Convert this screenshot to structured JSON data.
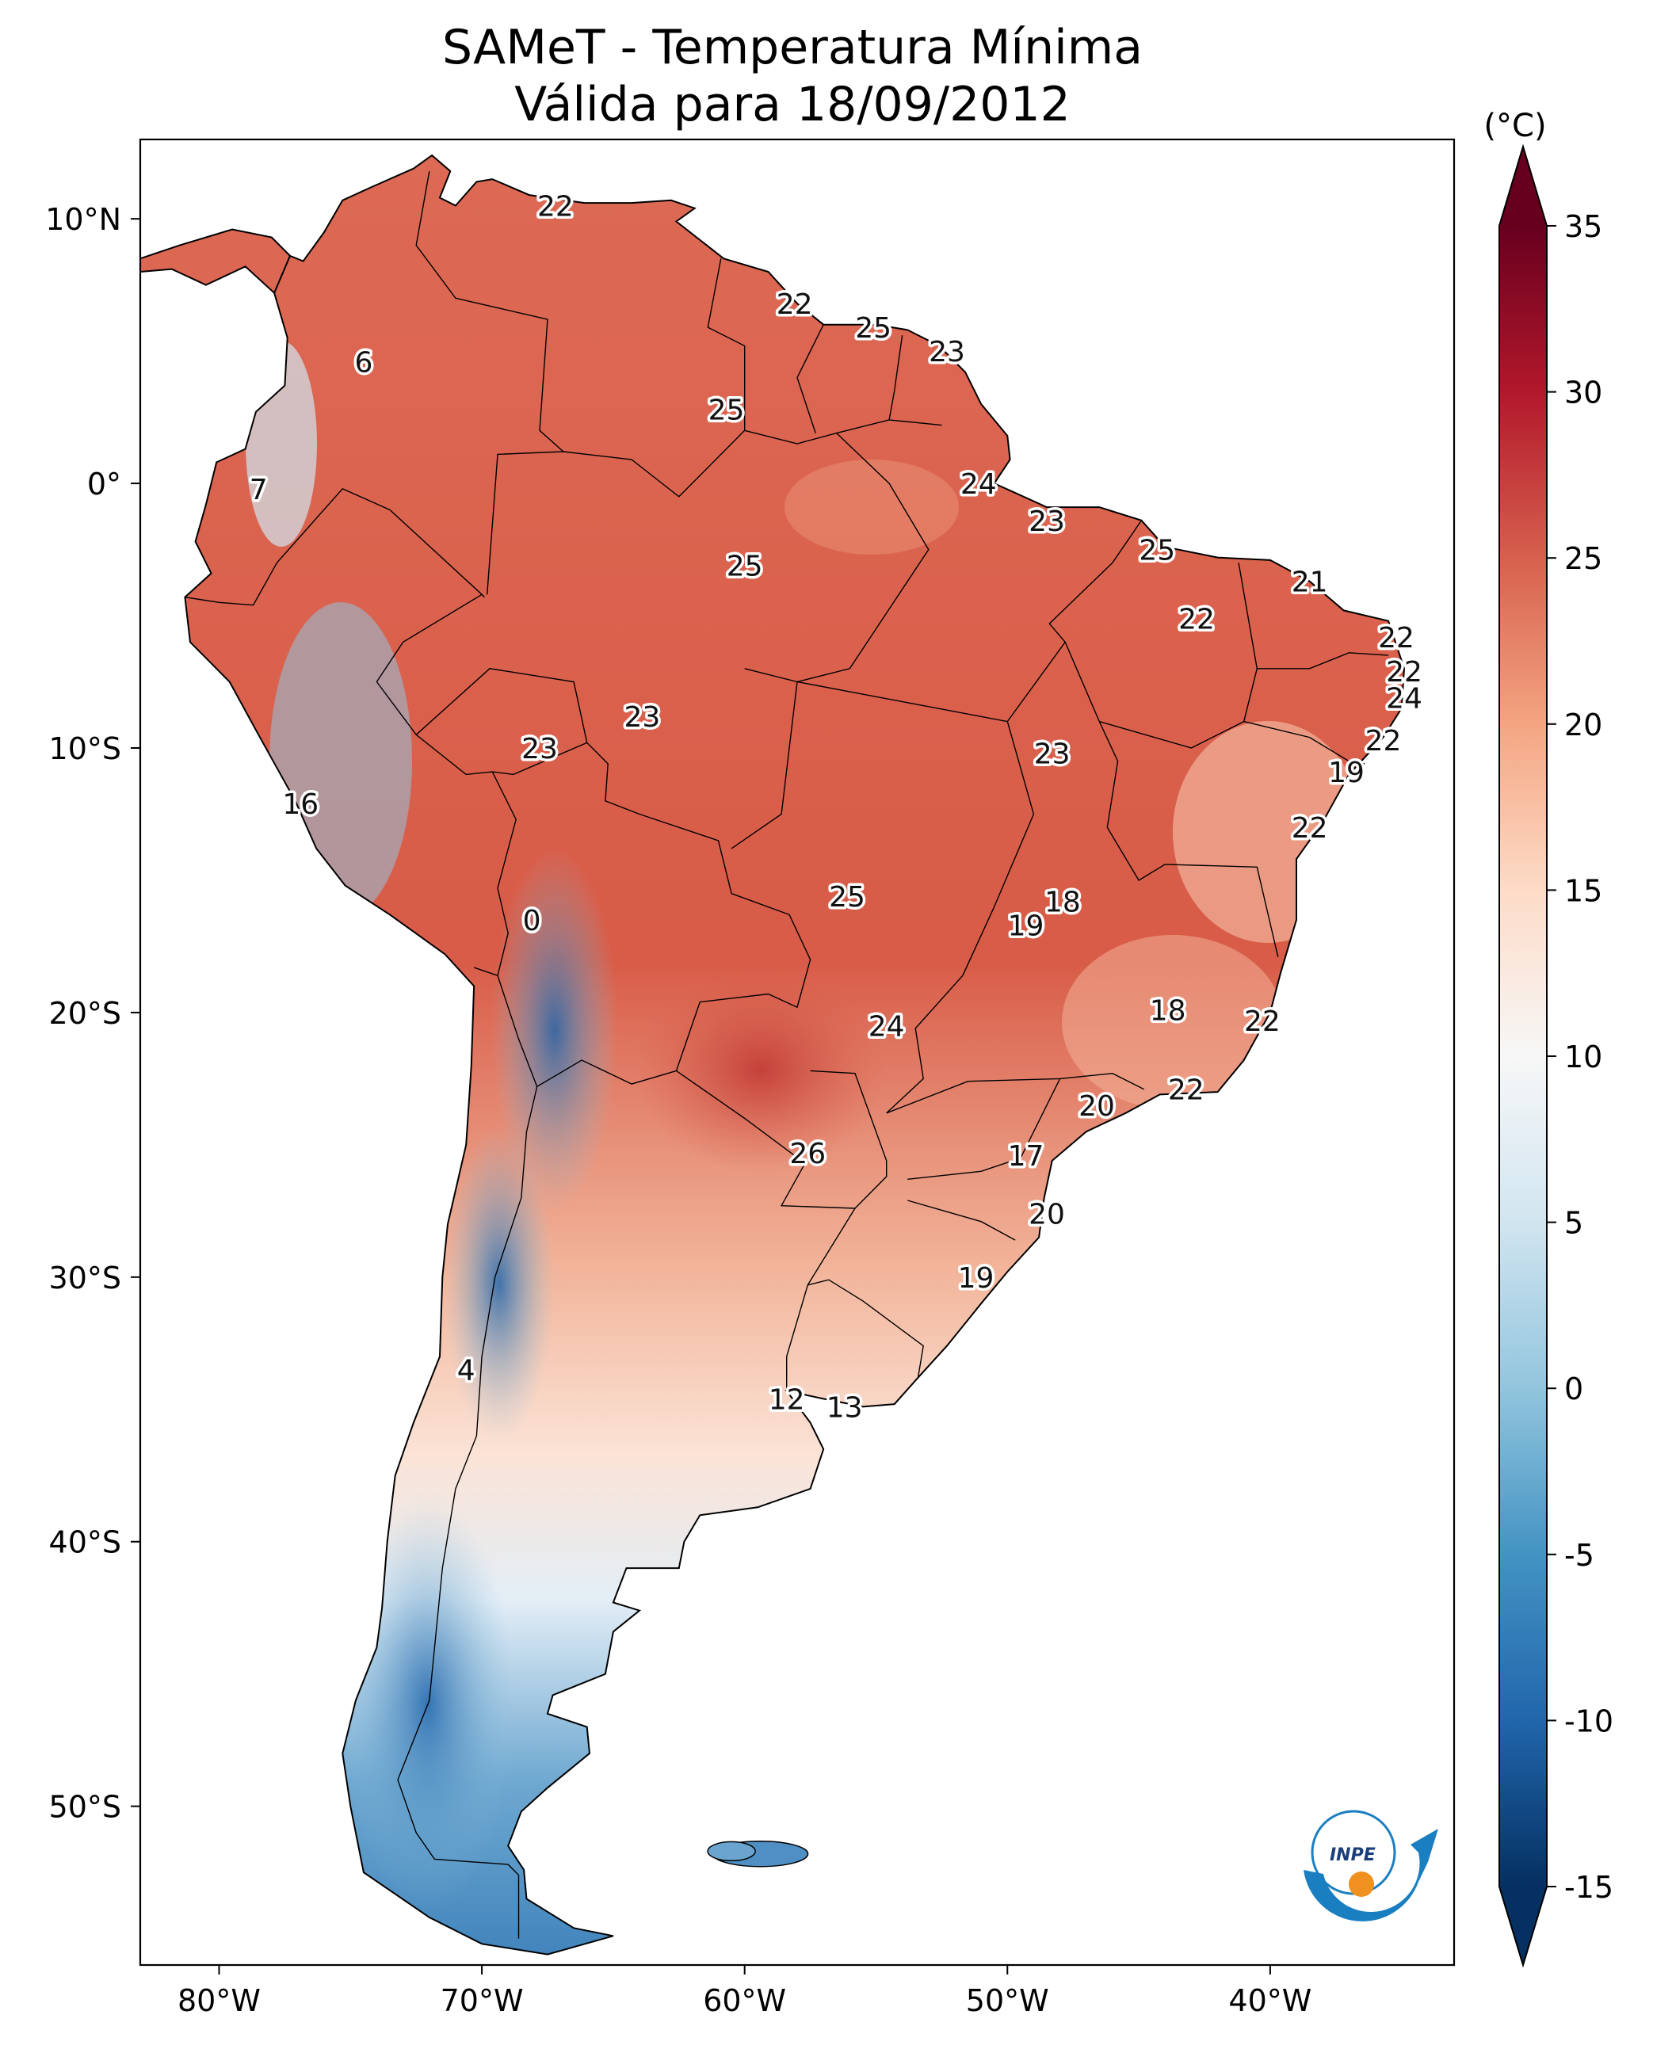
{
  "title": {
    "line1": "SAMeT - Temperatura Mínima",
    "line2": "Válida para 18/09/2012"
  },
  "map": {
    "lon_range": [
      -83,
      -33
    ],
    "lat_range": [
      -56,
      13
    ],
    "lon_ticks": [
      {
        "lon": -80,
        "label": "80°W"
      },
      {
        "lon": -70,
        "label": "70°W"
      },
      {
        "lon": -60,
        "label": "60°W"
      },
      {
        "lon": -50,
        "label": "50°W"
      },
      {
        "lon": -40,
        "label": "40°W"
      }
    ],
    "lat_ticks": [
      {
        "lat": 10,
        "label": "10°N"
      },
      {
        "lat": 0,
        "label": "0°"
      },
      {
        "lat": -10,
        "label": "10°S"
      },
      {
        "lat": -20,
        "label": "20°S"
      },
      {
        "lat": -30,
        "label": "30°S"
      },
      {
        "lat": -40,
        "label": "40°S"
      },
      {
        "lat": -50,
        "label": "50°S"
      }
    ],
    "labels": [
      {
        "lon": -67.2,
        "lat": 10.5,
        "text": "22"
      },
      {
        "lon": -58.1,
        "lat": 6.8,
        "text": "22"
      },
      {
        "lon": -55.1,
        "lat": 5.9,
        "text": "25"
      },
      {
        "lon": -52.3,
        "lat": 5.0,
        "text": "23"
      },
      {
        "lon": -60.7,
        "lat": 2.8,
        "text": "25"
      },
      {
        "lon": -74.5,
        "lat": 4.6,
        "text": "6"
      },
      {
        "lon": -78.5,
        "lat": -0.2,
        "text": "7"
      },
      {
        "lon": -51.1,
        "lat": 0.0,
        "text": "24"
      },
      {
        "lon": -48.5,
        "lat": -1.4,
        "text": "23"
      },
      {
        "lon": -60.0,
        "lat": -3.1,
        "text": "25"
      },
      {
        "lon": -38.5,
        "lat": -3.7,
        "text": "21"
      },
      {
        "lon": -44.3,
        "lat": -2.5,
        "text": "25"
      },
      {
        "lon": -42.8,
        "lat": -5.1,
        "text": "22"
      },
      {
        "lon": -35.2,
        "lat": -5.8,
        "text": "22"
      },
      {
        "lon": -34.9,
        "lat": -7.1,
        "text": "22"
      },
      {
        "lon": -34.9,
        "lat": -8.1,
        "text": "24"
      },
      {
        "lon": -35.7,
        "lat": -9.7,
        "text": "22"
      },
      {
        "lon": -37.1,
        "lat": -10.9,
        "text": "19"
      },
      {
        "lon": -63.9,
        "lat": -8.8,
        "text": "23"
      },
      {
        "lon": -67.8,
        "lat": -10.0,
        "text": "23"
      },
      {
        "lon": -48.3,
        "lat": -10.2,
        "text": "23"
      },
      {
        "lon": -38.5,
        "lat": -13.0,
        "text": "22"
      },
      {
        "lon": -76.9,
        "lat": -12.1,
        "text": "16"
      },
      {
        "lon": -56.1,
        "lat": -15.6,
        "text": "25"
      },
      {
        "lon": -47.9,
        "lat": -15.8,
        "text": "18"
      },
      {
        "lon": -49.3,
        "lat": -16.7,
        "text": "19"
      },
      {
        "lon": -68.1,
        "lat": -16.5,
        "text": "0"
      },
      {
        "lon": -43.9,
        "lat": -19.9,
        "text": "18"
      },
      {
        "lon": -54.6,
        "lat": -20.5,
        "text": "24"
      },
      {
        "lon": -40.3,
        "lat": -20.3,
        "text": "22"
      },
      {
        "lon": -43.2,
        "lat": -22.9,
        "text": "22"
      },
      {
        "lon": -46.6,
        "lat": -23.5,
        "text": "20"
      },
      {
        "lon": -57.6,
        "lat": -25.3,
        "text": "26"
      },
      {
        "lon": -49.3,
        "lat": -25.4,
        "text": "17"
      },
      {
        "lon": -48.5,
        "lat": -27.6,
        "text": "20"
      },
      {
        "lon": -51.2,
        "lat": -30.0,
        "text": "19"
      },
      {
        "lon": -70.6,
        "lat": -33.5,
        "text": "4"
      },
      {
        "lon": -58.4,
        "lat": -34.6,
        "text": "12"
      },
      {
        "lon": -56.2,
        "lat": -34.9,
        "text": "13"
      }
    ]
  },
  "colorbar": {
    "unit": "(°C)",
    "min": -17,
    "max": 37,
    "ticks": [
      35,
      30,
      25,
      20,
      15,
      10,
      5,
      0,
      -5,
      -10,
      -15
    ],
    "tick_labels": [
      "35",
      "30",
      "25",
      "20",
      "15",
      "10",
      "5",
      "0",
      "-5",
      "-10",
      "-15"
    ],
    "colors": {
      "t35": "#67001f",
      "t30": "#b2182b",
      "t25": "#d6604d",
      "t20": "#f4a582",
      "t15": "#fddbc7",
      "t10": "#f7f7f7",
      "t5": "#d1e5f0",
      "t0": "#92c5de",
      "tm5": "#4393c3",
      "tm10": "#2166ac",
      "tm15": "#053061"
    }
  },
  "logo": {
    "text": "INPE",
    "blue": "#1a7fc1",
    "orange": "#f0901e"
  }
}
